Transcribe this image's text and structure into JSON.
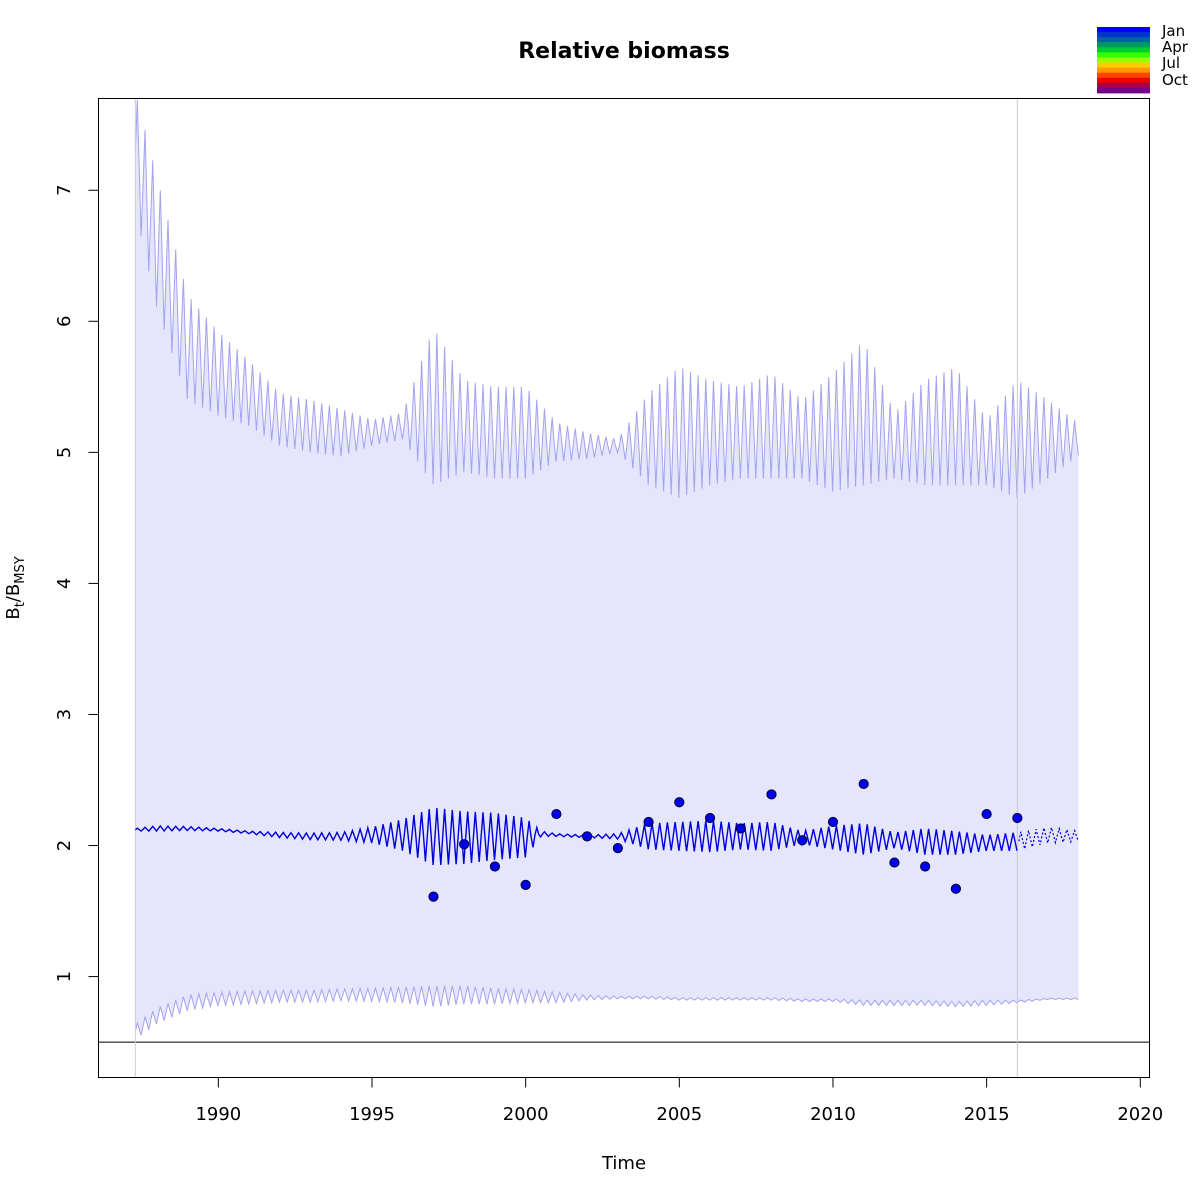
{
  "chart_data": {
    "type": "line",
    "title": "Relative biomass",
    "xlabel": "Time",
    "ylabel": {
      "base": "B",
      "sub1": "t",
      "sep": "/",
      "base2": "B",
      "sub2": "MSY"
    },
    "xlim": [
      1986.1,
      2020.3
    ],
    "ylim": [
      0.23,
      7.7
    ],
    "x_ticks": [
      1990,
      1995,
      2000,
      2005,
      2010,
      2015,
      2020
    ],
    "y_ticks": [
      1,
      2,
      3,
      4,
      5,
      6,
      7
    ],
    "grid": false,
    "reference_line_y": 0.5,
    "start_line_x": 1987.3,
    "present_x": 2016.0,
    "projection_end_x": 2018.0,
    "colors": {
      "median_line": "#0000dd",
      "band_fill": "#e5e5fc",
      "band_edge": "#a3a3f0",
      "points_fill": "#0000ee",
      "points_stroke": "#000033",
      "present_line": "#c8c8d0"
    },
    "season_legend": {
      "labels": [
        "Jan",
        "Apr",
        "Jul",
        "Oct"
      ],
      "colors": [
        "#0000ff",
        "#0033cc",
        "#006699",
        "#009966",
        "#00cc33",
        "#33ff00",
        "#99ff00",
        "#ffcc00",
        "#ff9900",
        "#ff4400",
        "#ee0000",
        "#aa0044",
        "#770088"
      ]
    },
    "observations": {
      "x": [
        1997.0,
        1998.0,
        1999.0,
        2000.0,
        2001.0,
        2002.0,
        2003.0,
        2004.0,
        2005.0,
        2006.0,
        2007.0,
        2008.0,
        2009.0,
        2010.0,
        2011.0,
        2012.0,
        2013.0,
        2014.0,
        2015.0,
        2016.0
      ],
      "y": [
        1.61,
        2.01,
        1.84,
        1.7,
        2.24,
        2.07,
        1.98,
        2.18,
        2.33,
        2.21,
        2.13,
        2.39,
        2.04,
        2.18,
        2.47,
        1.87,
        1.84,
        1.67,
        2.24,
        2.21
      ]
    },
    "median_series": {
      "x": [
        1987.3,
        1988,
        1989,
        1990,
        1991,
        1992,
        1993,
        1994,
        1995,
        1996,
        1997,
        1998,
        1999,
        2000,
        2000.5,
        2001,
        2002,
        2003,
        2004,
        2005,
        2006,
        2007,
        2008,
        2009,
        2010,
        2011,
        2012,
        2013,
        2014,
        2015,
        2016,
        2017,
        2018
      ],
      "y": [
        2.12,
        2.13,
        2.13,
        2.12,
        2.1,
        2.08,
        2.07,
        2.07,
        2.08,
        2.08,
        2.07,
        2.06,
        2.07,
        2.06,
        2.09,
        2.08,
        2.07,
        2.07,
        2.07,
        2.07,
        2.07,
        2.07,
        2.07,
        2.06,
        2.06,
        2.05,
        2.04,
        2.03,
        2.02,
        2.02,
        2.03,
        2.08,
        2.07
      ],
      "seasonal_amplitude": [
        0.01,
        0.02,
        0.015,
        0.01,
        0.01,
        0.02,
        0.025,
        0.03,
        0.06,
        0.12,
        0.22,
        0.2,
        0.18,
        0.15,
        0.02,
        0.01,
        0.01,
        0.02,
        0.1,
        0.11,
        0.12,
        0.1,
        0.11,
        0.05,
        0.09,
        0.12,
        0.06,
        0.1,
        0.09,
        0.06,
        0.07,
        0.06,
        0.04
      ]
    },
    "upper_band": {
      "x": [
        1987.3,
        1988,
        1989,
        1990,
        1991,
        1992,
        1993,
        1994,
        1995,
        1996,
        1997,
        1998,
        1999,
        2000,
        2001,
        2002,
        2003,
        2004,
        2005,
        2006,
        2007,
        2008,
        2009,
        2010,
        2011,
        2012,
        2013,
        2014,
        2015,
        2016,
        2017,
        2018
      ],
      "y": [
        7.3,
        6.6,
        5.8,
        5.6,
        5.45,
        5.25,
        5.2,
        5.15,
        5.15,
        5.2,
        5.35,
        5.2,
        5.15,
        5.15,
        5.08,
        5.05,
        5.05,
        5.1,
        5.15,
        5.15,
        5.15,
        5.2,
        5.1,
        5.15,
        5.3,
        5.05,
        5.15,
        5.2,
        5.0,
        5.1,
        5.1,
        5.1
      ],
      "seasonal_amplitude": [
        0.45,
        0.5,
        0.4,
        0.32,
        0.25,
        0.2,
        0.2,
        0.18,
        0.1,
        0.1,
        0.6,
        0.35,
        0.35,
        0.35,
        0.15,
        0.1,
        0.05,
        0.35,
        0.5,
        0.4,
        0.35,
        0.4,
        0.3,
        0.45,
        0.55,
        0.25,
        0.4,
        0.45,
        0.25,
        0.45,
        0.3,
        0.12
      ]
    },
    "lower_band": {
      "x": [
        1987.3,
        1988,
        1989,
        1990,
        1991,
        1992,
        1993,
        1994,
        1995,
        1996,
        1997,
        1998,
        1999,
        2000,
        2001,
        2002,
        2003,
        2004,
        2005,
        2006,
        2007,
        2008,
        2009,
        2010,
        2011,
        2012,
        2013,
        2014,
        2015,
        2016,
        2017,
        2018
      ],
      "y": [
        0.58,
        0.7,
        0.8,
        0.83,
        0.84,
        0.85,
        0.85,
        0.86,
        0.86,
        0.86,
        0.85,
        0.86,
        0.85,
        0.85,
        0.84,
        0.84,
        0.84,
        0.84,
        0.83,
        0.83,
        0.83,
        0.83,
        0.82,
        0.82,
        0.8,
        0.8,
        0.8,
        0.79,
        0.8,
        0.81,
        0.83,
        0.83
      ],
      "seasonal_amplitude": [
        0.06,
        0.06,
        0.06,
        0.05,
        0.05,
        0.045,
        0.045,
        0.045,
        0.05,
        0.06,
        0.08,
        0.07,
        0.06,
        0.05,
        0.04,
        0.02,
        0.01,
        0.01,
        0.01,
        0.01,
        0.01,
        0.01,
        0.01,
        0.01,
        0.02,
        0.02,
        0.02,
        0.02,
        0.02,
        0.01,
        0.005,
        0.005
      ]
    }
  }
}
